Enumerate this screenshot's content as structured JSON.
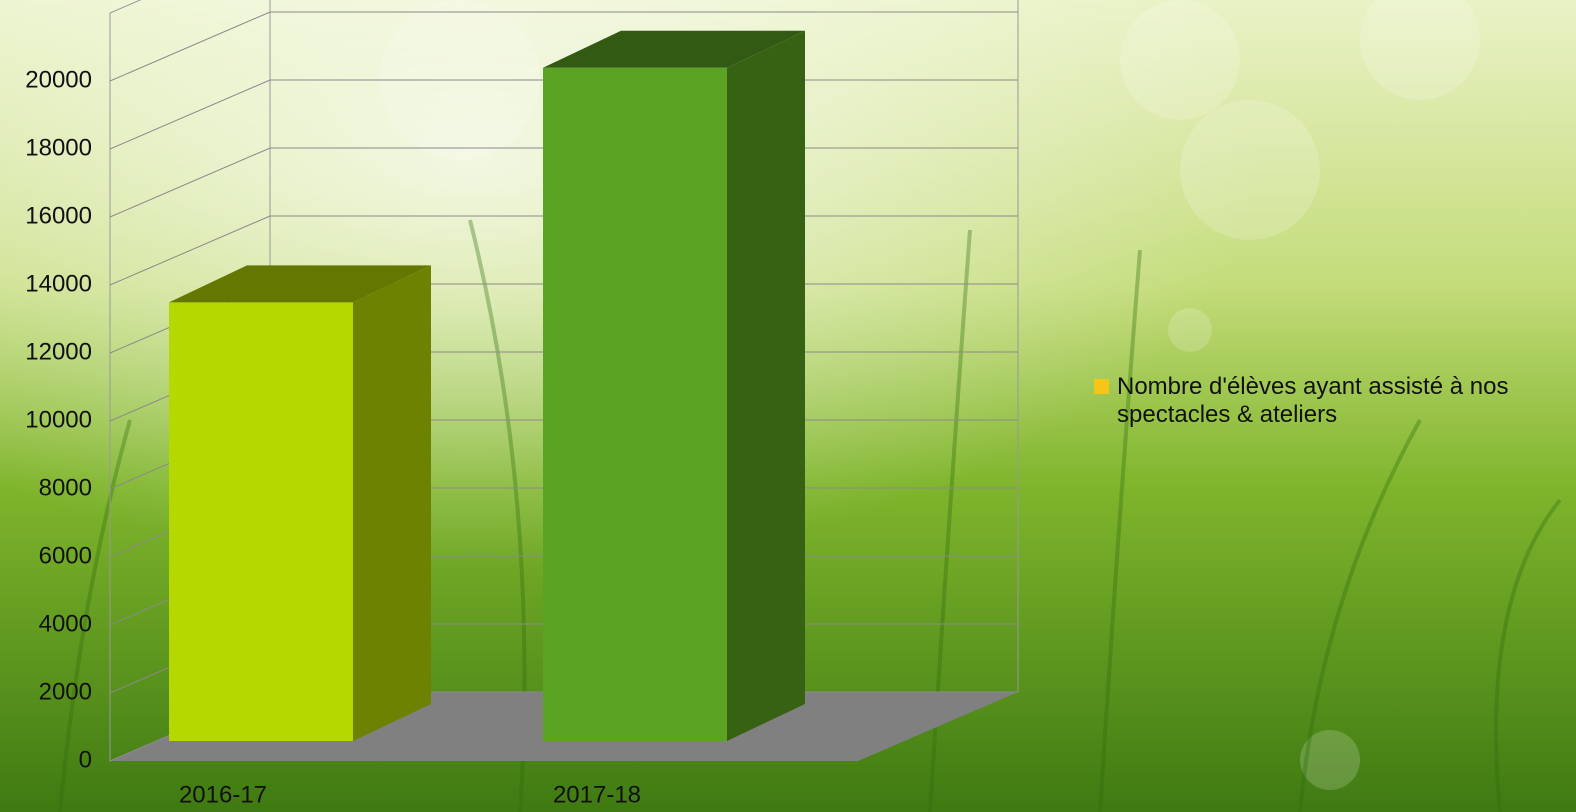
{
  "chart_data": {
    "type": "bar3d",
    "categories": [
      "2016-17",
      "2017-18"
    ],
    "series": [
      {
        "name": "Nombre d'élèves ayant assisté à nos spectacles & ateliers",
        "color": "#f5c518",
        "point_colors": [
          "#b5d900",
          "#5ba322"
        ],
        "values": [
          12900,
          19800
        ]
      }
    ],
    "ylim": [
      0,
      22000
    ],
    "yticks": [
      0,
      2000,
      4000,
      6000,
      8000,
      10000,
      12000,
      14000,
      16000,
      18000,
      20000
    ],
    "grid": true,
    "legend": "right"
  }
}
